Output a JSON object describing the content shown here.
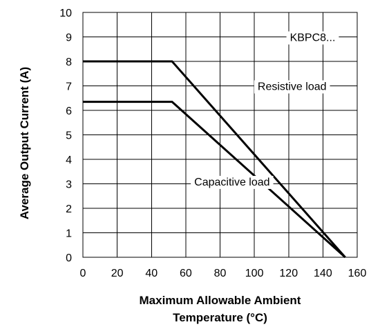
{
  "chart_data": {
    "type": "line",
    "xlabel": [
      "Maximum Allowable Ambient",
      "Temperature (°C)"
    ],
    "ylabel": "Average Output Current (A)",
    "xlim": [
      0,
      160
    ],
    "ylim": [
      0,
      10
    ],
    "xticks": [
      0,
      20,
      40,
      60,
      80,
      100,
      120,
      140,
      160
    ],
    "yticks": [
      0,
      1,
      2,
      3,
      4,
      5,
      6,
      7,
      8,
      9,
      10
    ],
    "grid": true,
    "series": [
      {
        "name": "Resistive load",
        "x": [
          0,
          52,
          153
        ],
        "y": [
          8.0,
          8.0,
          0.0
        ]
      },
      {
        "name": "Capacitive load",
        "x": [
          0,
          52,
          153
        ],
        "y": [
          6.35,
          6.35,
          0.0
        ]
      }
    ],
    "annotations": [
      {
        "text": "KBPC8...",
        "x": 134,
        "y": 9.0
      },
      {
        "text": "Resistive load",
        "x": 122,
        "y": 7.0
      },
      {
        "text": "Capacitive load",
        "x": 87,
        "y": 3.1
      }
    ],
    "colors": {
      "line": "#000000",
      "grid": "#000000",
      "background": "#ffffff"
    }
  }
}
